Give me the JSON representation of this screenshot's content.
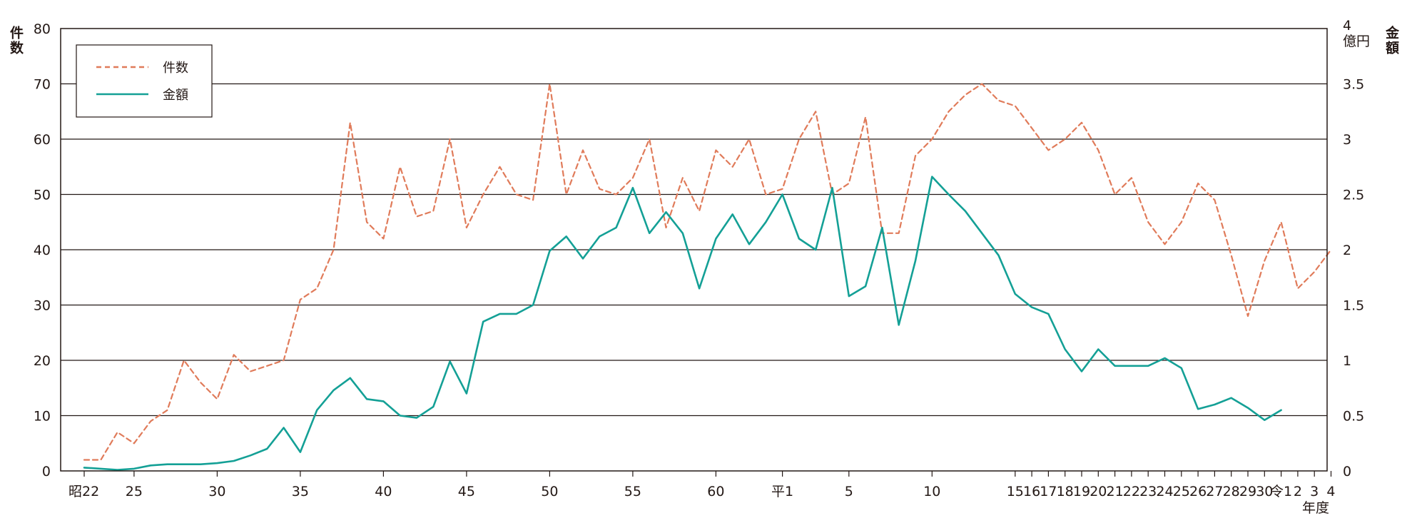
{
  "chart_data": {
    "type": "line",
    "title": "",
    "xlabel": "年度",
    "ylabel_left": "件数",
    "ylabel_right": "金額",
    "right_unit": "億円",
    "ylim_left": [
      0,
      80
    ],
    "ylim_right": [
      0,
      4
    ],
    "left_ticks": [
      "0",
      "10",
      "20",
      "30",
      "40",
      "50",
      "60",
      "70",
      "80"
    ],
    "right_ticks": [
      "0",
      "0.5",
      "1",
      "1.5",
      "2",
      "2.5",
      "3",
      "3.5",
      "4"
    ],
    "grid": true,
    "legend_position": "top-left",
    "x_ticks": [
      {
        "label": "昭22",
        "x": 0
      },
      {
        "label": "25",
        "x": 3
      },
      {
        "label": "30",
        "x": 8
      },
      {
        "label": "35",
        "x": 13
      },
      {
        "label": "40",
        "x": 18
      },
      {
        "label": "45",
        "x": 23
      },
      {
        "label": "50",
        "x": 28
      },
      {
        "label": "55",
        "x": 33
      },
      {
        "label": "60",
        "x": 38
      },
      {
        "label": "平1",
        "x": 42
      },
      {
        "label": "5",
        "x": 46
      },
      {
        "label": "10",
        "x": 51
      },
      {
        "label": "15",
        "x": 56
      },
      {
        "label": "16",
        "x": 57
      },
      {
        "label": "17",
        "x": 58
      },
      {
        "label": "18",
        "x": 59
      },
      {
        "label": "19",
        "x": 60
      },
      {
        "label": "20",
        "x": 61
      },
      {
        "label": "21",
        "x": 62
      },
      {
        "label": "22",
        "x": 63
      },
      {
        "label": "23",
        "x": 64
      },
      {
        "label": "24",
        "x": 65
      },
      {
        "label": "25",
        "x": 66
      },
      {
        "label": "26",
        "x": 67
      },
      {
        "label": "27",
        "x": 68
      },
      {
        "label": "28",
        "x": 69
      },
      {
        "label": "29",
        "x": 70
      },
      {
        "label": "30",
        "x": 71
      },
      {
        "label": "令1",
        "x": 72
      },
      {
        "label": "2",
        "x": 73
      },
      {
        "label": "3",
        "x": 74
      },
      {
        "label": "4",
        "x": 75
      }
    ],
    "series": [
      {
        "name": "件数",
        "axis": "left",
        "color": "#e07b5a",
        "style": "dashed",
        "points": [
          [
            0,
            2
          ],
          [
            1,
            2
          ],
          [
            2,
            7
          ],
          [
            3,
            5
          ],
          [
            4,
            9
          ],
          [
            5,
            11
          ],
          [
            6,
            20
          ],
          [
            7,
            16
          ],
          [
            8,
            13
          ],
          [
            9,
            21
          ],
          [
            10,
            18
          ],
          [
            11,
            19
          ],
          [
            12,
            20
          ],
          [
            13,
            31
          ],
          [
            14,
            33
          ],
          [
            15,
            40
          ],
          [
            16,
            63
          ],
          [
            17,
            45
          ],
          [
            18,
            42
          ],
          [
            19,
            55
          ],
          [
            20,
            46
          ],
          [
            21,
            47
          ],
          [
            22,
            60
          ],
          [
            23,
            44
          ],
          [
            24,
            50
          ],
          [
            25,
            55
          ],
          [
            26,
            50
          ],
          [
            27,
            49
          ],
          [
            28,
            70
          ],
          [
            29,
            50
          ],
          [
            30,
            58
          ],
          [
            31,
            51
          ],
          [
            32,
            50
          ],
          [
            33,
            53
          ],
          [
            34,
            60
          ],
          [
            35,
            44
          ],
          [
            36,
            53
          ],
          [
            37,
            47
          ],
          [
            38,
            58
          ],
          [
            39,
            55
          ],
          [
            40,
            60
          ],
          [
            41,
            50
          ],
          [
            42,
            51
          ],
          [
            43,
            60
          ],
          [
            44,
            65
          ],
          [
            45,
            50
          ],
          [
            46,
            52
          ],
          [
            47,
            64
          ],
          [
            48,
            43
          ],
          [
            49,
            43
          ],
          [
            50,
            57
          ],
          [
            51,
            60
          ],
          [
            52,
            65
          ],
          [
            53,
            68
          ],
          [
            54,
            70
          ],
          [
            55,
            67
          ],
          [
            56,
            66
          ],
          [
            57,
            62
          ],
          [
            58,
            58
          ],
          [
            59,
            60
          ],
          [
            60,
            63
          ],
          [
            61,
            58
          ],
          [
            62,
            50
          ],
          [
            63,
            53
          ],
          [
            64,
            45
          ],
          [
            65,
            41
          ],
          [
            66,
            45
          ],
          [
            67,
            52
          ],
          [
            68,
            49
          ],
          [
            69,
            39
          ],
          [
            70,
            28
          ],
          [
            71,
            38
          ],
          [
            72,
            45
          ],
          [
            73,
            33
          ],
          [
            74,
            36
          ],
          [
            75,
            40
          ]
        ]
      },
      {
        "name": "金額",
        "axis": "right",
        "color": "#14a096",
        "style": "solid",
        "points": [
          [
            0,
            0.03
          ],
          [
            1,
            0.02
          ],
          [
            2,
            0.01
          ],
          [
            3,
            0.02
          ],
          [
            4,
            0.05
          ],
          [
            5,
            0.06
          ],
          [
            6,
            0.06
          ],
          [
            7,
            0.06
          ],
          [
            8,
            0.07
          ],
          [
            9,
            0.09
          ],
          [
            10,
            0.14
          ],
          [
            11,
            0.2
          ],
          [
            12,
            0.39
          ],
          [
            13,
            0.17
          ],
          [
            14,
            0.55
          ],
          [
            15,
            0.73
          ],
          [
            16,
            0.84
          ],
          [
            17,
            0.65
          ],
          [
            18,
            0.63
          ],
          [
            19,
            0.5
          ],
          [
            20,
            0.48
          ],
          [
            21,
            0.58
          ],
          [
            22,
            0.99
          ],
          [
            23,
            0.7
          ],
          [
            24,
            1.35
          ],
          [
            25,
            1.42
          ],
          [
            26,
            1.42
          ],
          [
            27,
            1.5
          ],
          [
            28,
            1.99
          ],
          [
            29,
            2.12
          ],
          [
            30,
            1.92
          ],
          [
            31,
            2.12
          ],
          [
            32,
            2.2
          ],
          [
            33,
            2.56
          ],
          [
            34,
            2.15
          ],
          [
            35,
            2.34
          ],
          [
            36,
            2.15
          ],
          [
            37,
            1.65
          ],
          [
            38,
            2.1
          ],
          [
            39,
            2.32
          ],
          [
            40,
            2.05
          ],
          [
            41,
            2.25
          ],
          [
            42,
            2.5
          ],
          [
            43,
            2.1
          ],
          [
            44,
            2.0
          ],
          [
            45,
            2.56
          ],
          [
            46,
            1.58
          ],
          [
            47,
            1.67
          ],
          [
            48,
            2.2
          ],
          [
            49,
            1.32
          ],
          [
            50,
            1.9
          ],
          [
            51,
            2.66
          ],
          [
            52,
            2.5
          ],
          [
            53,
            2.35
          ],
          [
            54,
            2.15
          ],
          [
            55,
            1.95
          ],
          [
            56,
            1.6
          ],
          [
            57,
            1.48
          ],
          [
            58,
            1.42
          ],
          [
            59,
            1.1
          ],
          [
            60,
            0.9
          ],
          [
            61,
            1.1
          ],
          [
            62,
            0.95
          ],
          [
            63,
            0.95
          ],
          [
            64,
            0.95
          ],
          [
            65,
            1.02
          ],
          [
            66,
            0.93
          ],
          [
            67,
            0.56
          ],
          [
            68,
            0.6
          ],
          [
            69,
            0.66
          ],
          [
            70,
            0.57
          ],
          [
            71,
            0.46
          ],
          [
            72,
            0.55
          ]
        ]
      }
    ]
  }
}
